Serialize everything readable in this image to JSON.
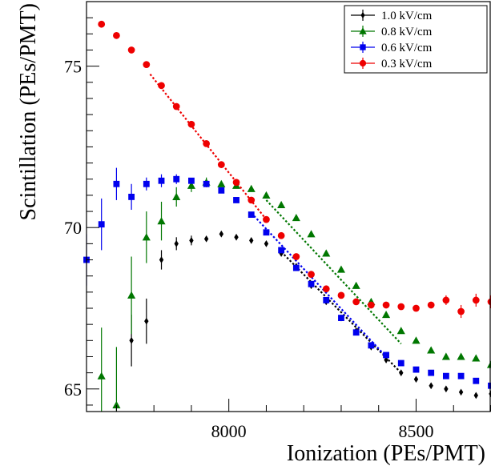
{
  "chart_data": {
    "type": "scatter",
    "title": "",
    "xlabel": "Ionization (PEs/PMT)",
    "ylabel": "Scintillation (PEs/PMT)",
    "xlim": [
      7620,
      8700
    ],
    "ylim": [
      64.3,
      77.0
    ],
    "x_ticks": [
      8000,
      8500
    ],
    "y_ticks": [
      65,
      70,
      75
    ],
    "grid": false,
    "legend_position": "top-right",
    "series": [
      {
        "name": "1.0 kV/cm",
        "color": "#000000",
        "marker": "diamond",
        "points": [
          [
            7740,
            66.5,
            0.8
          ],
          [
            7780,
            67.1,
            0.7
          ],
          [
            7820,
            69.0,
            0.3
          ],
          [
            7860,
            69.5,
            0.2
          ],
          [
            7900,
            69.6,
            0.15
          ],
          [
            7940,
            69.65,
            0.1
          ],
          [
            7980,
            69.8,
            0.1
          ],
          [
            8020,
            69.7,
            0.1
          ],
          [
            8060,
            69.6,
            0.1
          ],
          [
            8100,
            69.5,
            0.1
          ],
          [
            8140,
            69.2,
            0.1
          ],
          [
            8180,
            68.8,
            0.1
          ],
          [
            8220,
            68.2,
            0.1
          ],
          [
            8260,
            67.7,
            0.1
          ],
          [
            8300,
            67.2,
            0.1
          ],
          [
            8340,
            66.8,
            0.1
          ],
          [
            8380,
            66.3,
            0.1
          ],
          [
            8420,
            65.9,
            0.1
          ],
          [
            8460,
            65.5,
            0.1
          ],
          [
            8500,
            65.3,
            0.1
          ],
          [
            8540,
            65.1,
            0.1
          ],
          [
            8580,
            65.0,
            0.1
          ],
          [
            8620,
            64.9,
            0.1
          ],
          [
            8660,
            64.8,
            0.1
          ],
          [
            8700,
            64.85,
            0.1
          ]
        ],
        "fit": [
          [
            8140,
            69.25
          ],
          [
            8460,
            65.5
          ]
        ]
      },
      {
        "name": "0.8 kV/cm",
        "color": "#007700",
        "marker": "triangle",
        "points": [
          [
            7660,
            65.4,
            1.5
          ],
          [
            7700,
            64.5,
            1.8
          ],
          [
            7740,
            67.9,
            1.2
          ],
          [
            7780,
            69.7,
            0.8
          ],
          [
            7820,
            70.2,
            0.6
          ],
          [
            7860,
            70.95,
            0.3
          ],
          [
            7900,
            71.3,
            0.2
          ],
          [
            7940,
            71.4,
            0.15
          ],
          [
            7980,
            71.35,
            0.1
          ],
          [
            8020,
            71.3,
            0.1
          ],
          [
            8060,
            71.2,
            0.1
          ],
          [
            8100,
            71.0,
            0.1
          ],
          [
            8140,
            70.7,
            0.1
          ],
          [
            8180,
            70.3,
            0.1
          ],
          [
            8220,
            69.8,
            0.1
          ],
          [
            8260,
            69.2,
            0.1
          ],
          [
            8300,
            68.7,
            0.1
          ],
          [
            8340,
            68.2,
            0.1
          ],
          [
            8380,
            67.7,
            0.1
          ],
          [
            8420,
            67.3,
            0.1
          ],
          [
            8460,
            66.8,
            0.1
          ],
          [
            8500,
            66.5,
            0.1
          ],
          [
            8540,
            66.2,
            0.1
          ],
          [
            8580,
            66.0,
            0.1
          ],
          [
            8620,
            66.0,
            0.1
          ],
          [
            8660,
            65.95,
            0.1
          ],
          [
            8700,
            65.75,
            0.1
          ]
        ],
        "fit": [
          [
            8100,
            70.85
          ],
          [
            8460,
            66.4
          ]
        ]
      },
      {
        "name": "0.6 kV/cm",
        "color": "#0000ee",
        "marker": "square",
        "points": [
          [
            7620,
            69.0,
            0.8
          ],
          [
            7660,
            70.1,
            0.8
          ],
          [
            7700,
            71.35,
            0.5
          ],
          [
            7740,
            70.95,
            0.4
          ],
          [
            7780,
            71.35,
            0.2
          ],
          [
            7820,
            71.45,
            0.2
          ],
          [
            7860,
            71.5,
            0.15
          ],
          [
            7900,
            71.45,
            0.1
          ],
          [
            7940,
            71.35,
            0.1
          ],
          [
            7980,
            71.15,
            0.1
          ],
          [
            8020,
            70.85,
            0.1
          ],
          [
            8060,
            70.4,
            0.1
          ],
          [
            8100,
            69.85,
            0.1
          ],
          [
            8140,
            69.3,
            0.1
          ],
          [
            8180,
            68.75,
            0.1
          ],
          [
            8220,
            68.25,
            0.1
          ],
          [
            8260,
            67.75,
            0.1
          ],
          [
            8300,
            67.2,
            0.1
          ],
          [
            8340,
            66.75,
            0.1
          ],
          [
            8380,
            66.35,
            0.1
          ],
          [
            8420,
            66.05,
            0.1
          ],
          [
            8460,
            65.8,
            0.1
          ],
          [
            8500,
            65.6,
            0.1
          ],
          [
            8540,
            65.5,
            0.1
          ],
          [
            8580,
            65.4,
            0.1
          ],
          [
            8620,
            65.4,
            0.1
          ],
          [
            8660,
            65.25,
            0.1
          ],
          [
            8700,
            65.1,
            0.1
          ]
        ],
        "fit": [
          [
            8060,
            70.45
          ],
          [
            8420,
            66.0
          ]
        ]
      },
      {
        "name": "0.3 kV/cm",
        "color": "#ee0000",
        "marker": "circle",
        "points": [
          [
            7660,
            76.3,
            0.1
          ],
          [
            7700,
            75.95,
            0.1
          ],
          [
            7740,
            75.5,
            0.1
          ],
          [
            7780,
            75.05,
            0.1
          ],
          [
            7820,
            74.4,
            0.1
          ],
          [
            7860,
            73.75,
            0.1
          ],
          [
            7900,
            73.2,
            0.1
          ],
          [
            7940,
            72.6,
            0.1
          ],
          [
            7980,
            71.95,
            0.1
          ],
          [
            8020,
            71.4,
            0.1
          ],
          [
            8060,
            70.85,
            0.1
          ],
          [
            8100,
            70.25,
            0.1
          ],
          [
            8140,
            69.75,
            0.1
          ],
          [
            8180,
            69.1,
            0.1
          ],
          [
            8220,
            68.55,
            0.1
          ],
          [
            8260,
            68.1,
            0.1
          ],
          [
            8300,
            67.9,
            0.1
          ],
          [
            8340,
            67.7,
            0.1
          ],
          [
            8380,
            67.6,
            0.1
          ],
          [
            8420,
            67.6,
            0.1
          ],
          [
            8460,
            67.55,
            0.1
          ],
          [
            8500,
            67.5,
            0.1
          ],
          [
            8540,
            67.6,
            0.1
          ],
          [
            8580,
            67.75,
            0.15
          ],
          [
            8620,
            67.4,
            0.2
          ],
          [
            8660,
            67.75,
            0.2
          ],
          [
            8700,
            67.7,
            0.2
          ]
        ],
        "fit": [
          [
            7790,
            74.75
          ],
          [
            8100,
            70.25
          ]
        ]
      }
    ]
  }
}
